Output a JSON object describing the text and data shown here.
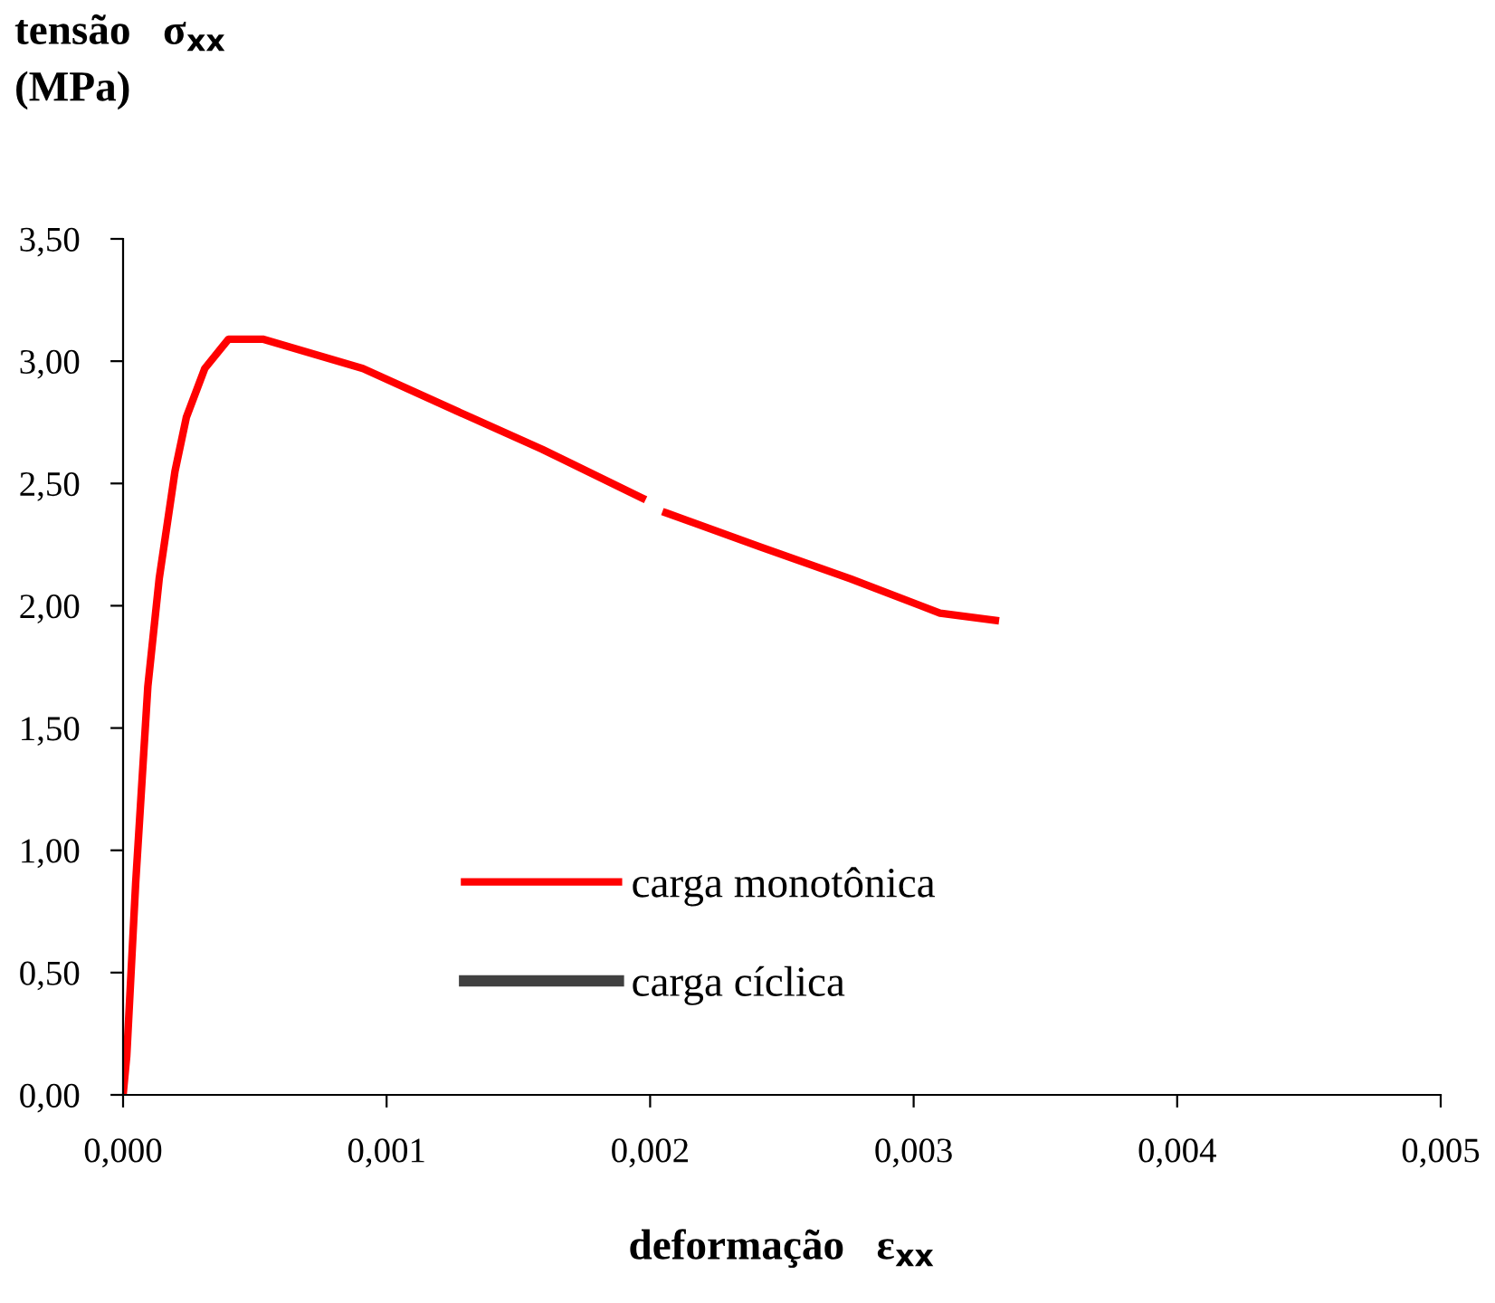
{
  "chart_data": {
    "type": "line",
    "ylabel": "tensão   σ$_{xx}$\n(MPa)",
    "xlabel": "deformação   ε$_{xx}$",
    "xlim": [
      0,
      0.005
    ],
    "ylim": [
      0,
      3.5
    ],
    "xticks": [
      {
        "value": 0,
        "label": "0,000"
      },
      {
        "value": 0.001,
        "label": "0,001"
      },
      {
        "value": 0.002,
        "label": "0,002"
      },
      {
        "value": 0.003,
        "label": "0,003"
      },
      {
        "value": 0.004,
        "label": "0,004"
      },
      {
        "value": 0.005,
        "label": "0,005"
      }
    ],
    "yticks": [
      {
        "value": 0,
        "label": "0,00"
      },
      {
        "value": 0.5,
        "label": "0,50"
      },
      {
        "value": 1,
        "label": "1,00"
      },
      {
        "value": 1.5,
        "label": "1,50"
      },
      {
        "value": 2,
        "label": "2,00"
      },
      {
        "value": 2.5,
        "label": "2,50"
      },
      {
        "value": 3,
        "label": "3,00"
      },
      {
        "value": 3.5,
        "label": "3,50"
      }
    ],
    "grid": false,
    "legend": "bottom",
    "marker": "none",
    "line_style": "solid",
    "series": [
      {
        "name": "carga monotônica",
        "color": "#ff0000",
        "x": [
          0,
          1.4e-05,
          4.8e-05,
          9.4e-05,
          0.000137,
          0.000197,
          0.00024,
          0.00031,
          0.00037,
          0.0004,
          0.00053,
          0.00091,
          0.00132,
          0.00159,
          0.00197,
          0.002,
          0.00206,
          0.00242,
          0.00276,
          0.0031,
          0.00331
        ],
        "values": [
          0,
          0.16,
          0.87,
          1.67,
          2.11,
          2.55,
          2.77,
          2.97,
          3.05,
          3.09,
          3.09,
          2.97,
          2.77,
          2.64,
          2.44,
          null,
          2.38,
          2.24,
          2.11,
          1.97,
          1.94
        ]
      },
      {
        "name": "carga cíclica",
        "color": "#404040"
      }
    ]
  }
}
